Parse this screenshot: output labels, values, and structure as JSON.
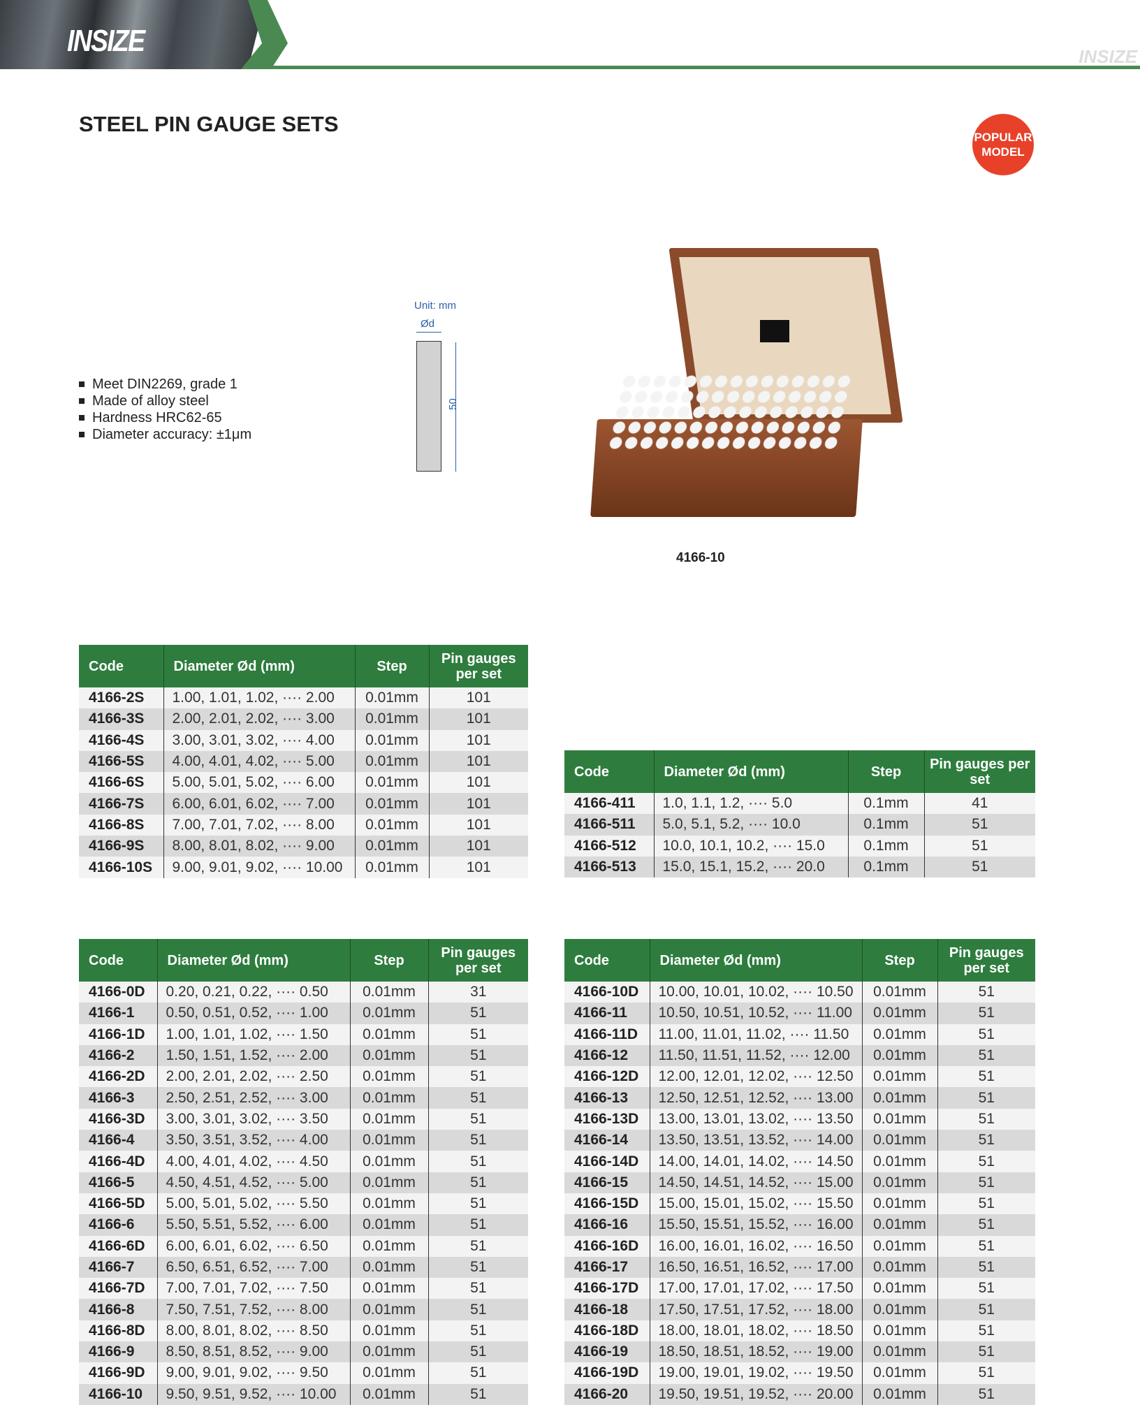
{
  "brand": {
    "logo": "INSIZE",
    "watermark": "INSIZE",
    "accent": "#2e7d3e",
    "badge_color": "#e8412a"
  },
  "page": {
    "title": "STEEL PIN GAUGE SETS",
    "badge": [
      "POPULAR",
      "MODEL"
    ]
  },
  "features": [
    "Meet DIN2269, grade 1",
    "Made of alloy steel",
    "Hardness HRC62-65",
    "Diameter accuracy: ±1μm"
  ],
  "diagram": {
    "unit": "Unit: mm",
    "diameter": "Ød",
    "length": "50"
  },
  "product_image": {
    "caption": "4166-10"
  },
  "headers": [
    "Code",
    "Diameter Ød (mm)",
    "Step",
    "Pin gauges per set"
  ],
  "tables": [
    {
      "rows": [
        [
          "4166-2S",
          "1.00, 1.01, 1.02, ···· 2.00",
          "0.01mm",
          "101"
        ],
        [
          "4166-3S",
          "2.00, 2.01, 2.02, ···· 3.00",
          "0.01mm",
          "101"
        ],
        [
          "4166-4S",
          "3.00, 3.01, 3.02, ···· 4.00",
          "0.01mm",
          "101"
        ],
        [
          "4166-5S",
          "4.00, 4.01, 4.02, ···· 5.00",
          "0.01mm",
          "101"
        ],
        [
          "4166-6S",
          "5.00, 5.01, 5.02, ···· 6.00",
          "0.01mm",
          "101"
        ],
        [
          "4166-7S",
          "6.00, 6.01, 6.02, ···· 7.00",
          "0.01mm",
          "101"
        ],
        [
          "4166-8S",
          "7.00, 7.01, 7.02, ···· 8.00",
          "0.01mm",
          "101"
        ],
        [
          "4166-9S",
          "8.00, 8.01, 8.02, ···· 9.00",
          "0.01mm",
          "101"
        ],
        [
          "4166-10S",
          "9.00, 9.01, 9.02, ···· 10.00",
          "0.01mm",
          "101"
        ]
      ]
    },
    {
      "rows": [
        [
          "4166-411",
          "1.0, 1.1, 1.2, ···· 5.0",
          "0.1mm",
          "41"
        ],
        [
          "4166-511",
          "5.0, 5.1, 5.2, ···· 10.0",
          "0.1mm",
          "51"
        ],
        [
          "4166-512",
          "10.0, 10.1, 10.2, ···· 15.0",
          "0.1mm",
          "51"
        ],
        [
          "4166-513",
          "15.0, 15.1, 15.2, ···· 20.0",
          "0.1mm",
          "51"
        ]
      ]
    },
    {
      "rows": [
        [
          "4166-0D",
          "0.20, 0.21, 0.22, ···· 0.50",
          "0.01mm",
          "31"
        ],
        [
          "4166-1",
          "0.50, 0.51, 0.52, ···· 1.00",
          "0.01mm",
          "51"
        ],
        [
          "4166-1D",
          "1.00, 1.01, 1.02, ···· 1.50",
          "0.01mm",
          "51"
        ],
        [
          "4166-2",
          "1.50, 1.51, 1.52, ···· 2.00",
          "0.01mm",
          "51"
        ],
        [
          "4166-2D",
          "2.00, 2.01, 2.02, ···· 2.50",
          "0.01mm",
          "51"
        ],
        [
          "4166-3",
          "2.50, 2.51, 2.52, ···· 3.00",
          "0.01mm",
          "51"
        ],
        [
          "4166-3D",
          "3.00, 3.01, 3.02, ···· 3.50",
          "0.01mm",
          "51"
        ],
        [
          "4166-4",
          "3.50, 3.51, 3.52, ···· 4.00",
          "0.01mm",
          "51"
        ],
        [
          "4166-4D",
          "4.00, 4.01, 4.02, ···· 4.50",
          "0.01mm",
          "51"
        ],
        [
          "4166-5",
          "4.50, 4.51, 4.52, ···· 5.00",
          "0.01mm",
          "51"
        ],
        [
          "4166-5D",
          "5.00, 5.01, 5.02, ···· 5.50",
          "0.01mm",
          "51"
        ],
        [
          "4166-6",
          "5.50, 5.51, 5.52, ···· 6.00",
          "0.01mm",
          "51"
        ],
        [
          "4166-6D",
          "6.00, 6.01, 6.02, ···· 6.50",
          "0.01mm",
          "51"
        ],
        [
          "4166-7",
          "6.50, 6.51, 6.52, ···· 7.00",
          "0.01mm",
          "51"
        ],
        [
          "4166-7D",
          "7.00, 7.01, 7.02, ···· 7.50",
          "0.01mm",
          "51"
        ],
        [
          "4166-8",
          "7.50, 7.51, 7.52, ···· 8.00",
          "0.01mm",
          "51"
        ],
        [
          "4166-8D",
          "8.00, 8.01, 8.02, ···· 8.50",
          "0.01mm",
          "51"
        ],
        [
          "4166-9",
          "8.50, 8.51, 8.52, ···· 9.00",
          "0.01mm",
          "51"
        ],
        [
          "4166-9D",
          "9.00, 9.01, 9.02, ···· 9.50",
          "0.01mm",
          "51"
        ],
        [
          "4166-10",
          "9.50, 9.51, 9.52, ···· 10.00",
          "0.01mm",
          "51"
        ]
      ]
    },
    {
      "rows": [
        [
          "4166-10D",
          "10.00, 10.01, 10.02, ···· 10.50",
          "0.01mm",
          "51"
        ],
        [
          "4166-11",
          "10.50, 10.51, 10.52, ···· 11.00",
          "0.01mm",
          "51"
        ],
        [
          "4166-11D",
          "11.00, 11.01, 11.02, ···· 11.50",
          "0.01mm",
          "51"
        ],
        [
          "4166-12",
          "11.50, 11.51, 11.52, ···· 12.00",
          "0.01mm",
          "51"
        ],
        [
          "4166-12D",
          "12.00, 12.01, 12.02, ···· 12.50",
          "0.01mm",
          "51"
        ],
        [
          "4166-13",
          "12.50, 12.51, 12.52, ···· 13.00",
          "0.01mm",
          "51"
        ],
        [
          "4166-13D",
          "13.00, 13.01, 13.02, ···· 13.50",
          "0.01mm",
          "51"
        ],
        [
          "4166-14",
          "13.50, 13.51, 13.52, ···· 14.00",
          "0.01mm",
          "51"
        ],
        [
          "4166-14D",
          "14.00, 14.01, 14.02, ···· 14.50",
          "0.01mm",
          "51"
        ],
        [
          "4166-15",
          "14.50, 14.51, 14.52, ···· 15.00",
          "0.01mm",
          "51"
        ],
        [
          "4166-15D",
          "15.00, 15.01, 15.02, ···· 15.50",
          "0.01mm",
          "51"
        ],
        [
          "4166-16",
          "15.50, 15.51, 15.52, ···· 16.00",
          "0.01mm",
          "51"
        ],
        [
          "4166-16D",
          "16.00, 16.01, 16.02, ···· 16.50",
          "0.01mm",
          "51"
        ],
        [
          "4166-17",
          "16.50, 16.51, 16.52, ···· 17.00",
          "0.01mm",
          "51"
        ],
        [
          "4166-17D",
          "17.00, 17.01, 17.02, ···· 17.50",
          "0.01mm",
          "51"
        ],
        [
          "4166-18",
          "17.50, 17.51, 17.52, ···· 18.00",
          "0.01mm",
          "51"
        ],
        [
          "4166-18D",
          "18.00, 18.01, 18.02, ···· 18.50",
          "0.01mm",
          "51"
        ],
        [
          "4166-19",
          "18.50, 18.51, 18.52, ···· 19.00",
          "0.01mm",
          "51"
        ],
        [
          "4166-19D",
          "19.00, 19.01, 19.02, ···· 19.50",
          "0.01mm",
          "51"
        ],
        [
          "4166-20",
          "19.50, 19.51, 19.52, ···· 20.00",
          "0.01mm",
          "51"
        ]
      ]
    }
  ]
}
